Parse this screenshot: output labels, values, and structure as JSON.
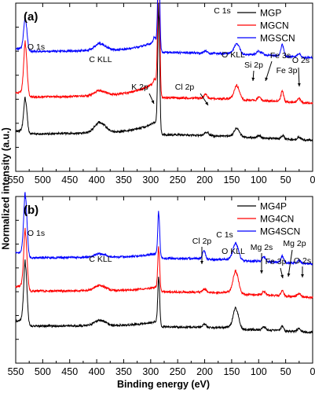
{
  "figure": {
    "xlabel": "Binding energy (eV)",
    "ylabel": "Normalized intensity (a.u.)"
  },
  "chart_data": [
    {
      "type": "line",
      "panel_label": "(a)",
      "xlabel": "",
      "ylabel": "Normalized intensity (a.u.)",
      "xlim": [
        550,
        0
      ],
      "x_reversed": true,
      "xticks": [
        "550",
        "500",
        "450",
        "400",
        "350",
        "300",
        "250",
        "200",
        "150",
        "100",
        "50",
        "0"
      ],
      "legend_position": "top-right",
      "series": [
        {
          "name": "MGP",
          "color": "#000000",
          "baseline": 0.18,
          "peaks": [
            [
              532,
              0.2,
              3
            ],
            [
              393,
              0.06,
              10
            ],
            [
              285,
              0.72,
              1.8
            ],
            [
              196,
              0.02,
              4
            ],
            [
              140,
              0.05,
              5
            ],
            [
              99,
              0.015,
              3
            ],
            [
              55,
              0.02,
              2.5
            ],
            [
              25,
              0.015,
              3
            ]
          ]
        },
        {
          "name": "MGCN",
          "color": "#ff0000",
          "baseline": 0.4,
          "peaks": [
            [
              532,
              0.3,
              3
            ],
            [
              393,
              0.03,
              10
            ],
            [
              293,
              0.02,
              2
            ],
            [
              285,
              0.88,
              1.8
            ],
            [
              198,
              0.025,
              3
            ],
            [
              140,
              0.08,
              5
            ],
            [
              99,
              0.02,
              3
            ],
            [
              56,
              0.06,
              2.5
            ],
            [
              25,
              0.025,
              3
            ]
          ]
        },
        {
          "name": "MGSCN",
          "color": "#0000ff",
          "baseline": 0.67,
          "peaks": [
            [
              532,
              0.19,
              3
            ],
            [
              393,
              0.04,
              10
            ],
            [
              293,
              0.03,
              2
            ],
            [
              285,
              0.58,
              1.8
            ],
            [
              198,
              0.015,
              3
            ],
            [
              140,
              0.06,
              5
            ],
            [
              101,
              0.02,
              3
            ],
            [
              94,
              0.015,
              3
            ],
            [
              56,
              0.07,
              2.5
            ],
            [
              25,
              0.02,
              3
            ]
          ]
        }
      ],
      "annotations": [
        {
          "text": "O 1s"
        },
        {
          "text": "C KLL"
        },
        {
          "text": "C 1s"
        },
        {
          "text": "K 2p"
        },
        {
          "text": "Cl 2p"
        },
        {
          "text": "O KLL"
        },
        {
          "text": "Si 2p"
        },
        {
          "text": "Fe 3s"
        },
        {
          "text": "Fe 3p"
        },
        {
          "text": "O 2s"
        }
      ]
    },
    {
      "type": "line",
      "panel_label": "(b)",
      "xlabel": "Binding energy (eV)",
      "ylabel": "Normalized intensity (a.u.)",
      "xlim": [
        550,
        0
      ],
      "x_reversed": true,
      "xticks": [
        "550",
        "500",
        "450",
        "400",
        "350",
        "300",
        "250",
        "200",
        "150",
        "100",
        "50",
        "0"
      ],
      "legend_position": "top-right",
      "series": [
        {
          "name": "MG4P",
          "color": "#000000",
          "baseline": 0.18,
          "peaks": [
            [
              532,
              0.36,
              3
            ],
            [
              393,
              0.03,
              10
            ],
            [
              285,
              0.28,
              1.8
            ],
            [
              200,
              0.02,
              3
            ],
            [
              142,
              0.12,
              5
            ],
            [
              90,
              0.02,
              3
            ],
            [
              56,
              0.03,
              2.5
            ],
            [
              25,
              0.02,
              3
            ]
          ]
        },
        {
          "name": "MG4CN",
          "color": "#ff0000",
          "baseline": 0.39,
          "peaks": [
            [
              532,
              0.34,
              3
            ],
            [
              393,
              0.03,
              10
            ],
            [
              285,
              0.25,
              1.8
            ],
            [
              200,
              0.02,
              3
            ],
            [
              142,
              0.13,
              5
            ],
            [
              90,
              0.02,
              3
            ],
            [
              56,
              0.03,
              2.5
            ],
            [
              25,
              0.02,
              3
            ]
          ]
        },
        {
          "name": "MG4SCN",
          "color": "#0000ff",
          "baseline": 0.59,
          "peaks": [
            [
              532,
              0.36,
              3
            ],
            [
              393,
              0.02,
              10
            ],
            [
              285,
              0.26,
              1.8
            ],
            [
              201,
              0.05,
              2.5
            ],
            [
              142,
              0.1,
              5
            ],
            [
              90,
              0.03,
              3
            ],
            [
              56,
              0.04,
              2.5
            ],
            [
              25,
              0.02,
              3
            ]
          ]
        }
      ],
      "annotations": [
        {
          "text": "O 1s"
        },
        {
          "text": "C KLL"
        },
        {
          "text": "C 1s"
        },
        {
          "text": "Cl 2p"
        },
        {
          "text": "O KLL"
        },
        {
          "text": "Mg 2s"
        },
        {
          "text": "Fe 3p"
        },
        {
          "text": "Mg 2p"
        },
        {
          "text": "O 2s"
        }
      ]
    }
  ]
}
